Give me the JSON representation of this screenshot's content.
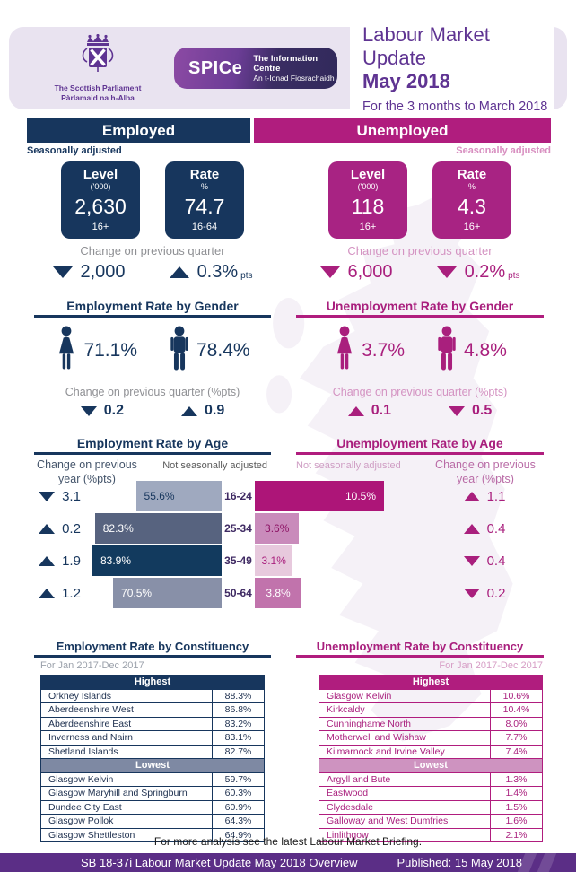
{
  "header": {
    "parliament_logo": {
      "line1": "The Scottish Parliament",
      "line2": "Pàrlamaid na h-Alba"
    },
    "spice": {
      "name": "SPICe",
      "line1": "The Information Centre",
      "line2": "An t-Ionad Fiosrachaidh"
    },
    "title_line1": "Labour Market Update",
    "title_line2": "May 2018",
    "subtitle": "For the 3 months to March 2018"
  },
  "employed": {
    "band_label": "Employed",
    "adjustment_note": "Seasonally adjusted",
    "level": {
      "label": "Level",
      "unit": "('000)",
      "value": "2,630",
      "age": "16+"
    },
    "rate": {
      "label": "Rate",
      "unit": "%",
      "value": "74.7",
      "age": "16-64"
    },
    "quarter_change_label": "Change on previous quarter",
    "quarter_changes": [
      {
        "direction": "down",
        "value": "2,000",
        "suffix": ""
      },
      {
        "direction": "up",
        "value": "0.3%",
        "suffix": "pts"
      }
    ],
    "gender": {
      "title": "Employment Rate by Gender",
      "female_rate": "71.1%",
      "male_rate": "78.4%",
      "change_label": "Change on previous quarter (%pts)",
      "changes": [
        {
          "direction": "down",
          "value": "0.2"
        },
        {
          "direction": "up",
          "value": "0.9"
        }
      ]
    },
    "constituency": {
      "title": "Employment Rate by Constituency",
      "period": "For Jan 2017-Dec 2017",
      "highest_label": "Highest",
      "lowest_label": "Lowest",
      "highest": [
        {
          "name": "Orkney Islands",
          "rate": "88.3%"
        },
        {
          "name": "Aberdeenshire West",
          "rate": "86.8%"
        },
        {
          "name": "Aberdeenshire East",
          "rate": "83.2%"
        },
        {
          "name": "Inverness and Nairn",
          "rate": "83.1%"
        },
        {
          "name": "Shetland Islands",
          "rate": "82.7%"
        }
      ],
      "lowest": [
        {
          "name": "Glasgow Kelvin",
          "rate": "59.7%"
        },
        {
          "name": "Glasgow Maryhill and Springburn",
          "rate": "60.3%"
        },
        {
          "name": "Dundee City East",
          "rate": "60.9%"
        },
        {
          "name": "Glasgow Pollok",
          "rate": "64.3%"
        },
        {
          "name": "Glasgow Shettleston",
          "rate": "64.9%"
        }
      ]
    }
  },
  "unemployed": {
    "band_label": "Unemployed",
    "adjustment_note": "Seasonally adjusted",
    "level": {
      "label": "Level",
      "unit": "('000)",
      "value": "118",
      "age": "16+"
    },
    "rate": {
      "label": "Rate",
      "unit": "%",
      "value": "4.3",
      "age": "16+"
    },
    "quarter_change_label": "Change on previous quarter",
    "quarter_changes": [
      {
        "direction": "down",
        "value": "6,000",
        "suffix": ""
      },
      {
        "direction": "down",
        "value": "0.2%",
        "suffix": "pts"
      }
    ],
    "gender": {
      "title": "Unemployment Rate by Gender",
      "female_rate": "3.7%",
      "male_rate": "4.8%",
      "change_label": "Change on previous quarter (%pts)",
      "changes": [
        {
          "direction": "up",
          "value": "0.1"
        },
        {
          "direction": "down",
          "value": "0.5"
        }
      ]
    },
    "constituency": {
      "title": "Unemployment Rate by Constituency",
      "period": "For Jan 2017-Dec 2017",
      "highest_label": "Highest",
      "lowest_label": "Lowest",
      "highest": [
        {
          "name": "Glasgow Kelvin",
          "rate": "10.6%"
        },
        {
          "name": "Kirkcaldy",
          "rate": "10.4%"
        },
        {
          "name": "Cunninghame North",
          "rate": "8.0%"
        },
        {
          "name": "Motherwell and Wishaw",
          "rate": "7.7%"
        },
        {
          "name": "Kilmarnock and Irvine Valley",
          "rate": "7.4%"
        }
      ],
      "lowest": [
        {
          "name": "Argyll and Bute",
          "rate": "1.3%"
        },
        {
          "name": "Eastwood",
          "rate": "1.4%"
        },
        {
          "name": "Clydesdale",
          "rate": "1.5%"
        },
        {
          "name": "Galloway and West Dumfries",
          "rate": "1.6%"
        },
        {
          "name": "Linlithgow",
          "rate": "2.1%"
        }
      ]
    }
  },
  "chart_data": [
    {
      "type": "bar",
      "title": "Employment Rate by Age",
      "orientation": "horizontal-right-aligned",
      "adjustment_note": "Not seasonally adjusted",
      "change_note_line1": "Change on previous",
      "change_note_line2": "year (%pts)",
      "categories": [
        "16-24",
        "25-34",
        "35-49",
        "50-64"
      ],
      "values": [
        55.6,
        82.3,
        83.9,
        70.5
      ],
      "value_labels": [
        "55.6%",
        "82.3%",
        "83.9%",
        "70.5%"
      ],
      "scale_max": 83.9,
      "bar_colors": [
        "#9fa9bf",
        "#57637f",
        "#123a5e",
        "#8890a8"
      ],
      "label_colors": [
        "#17365d",
        "#ffffff",
        "#ffffff",
        "#ffffff"
      ],
      "label_align": [
        "left",
        "left",
        "left",
        "left"
      ],
      "changes": [
        {
          "direction": "down",
          "value": "3.1"
        },
        {
          "direction": "up",
          "value": "0.2"
        },
        {
          "direction": "up",
          "value": "1.9"
        },
        {
          "direction": "up",
          "value": "1.2"
        }
      ]
    },
    {
      "type": "bar",
      "title": "Unemployment Rate by Age",
      "orientation": "horizontal-left-aligned",
      "adjustment_note": "Not seasonally adjusted",
      "change_note_line1": "Change on previous",
      "change_note_line2": "year (%pts)",
      "categories": [
        "16-24",
        "25-34",
        "35-49",
        "50-64"
      ],
      "values": [
        10.5,
        3.6,
        3.1,
        3.8
      ],
      "value_labels": [
        "10.5%",
        "3.6%",
        "3.1%",
        "3.8%"
      ],
      "scale_max": 10.5,
      "bar_colors": [
        "#ad1578",
        "#c98bbb",
        "#e7c9dd",
        "#c173ac"
      ],
      "label_colors": [
        "#ffffff",
        "#8e1566",
        "#a91f7d",
        "#ffffff"
      ],
      "label_align": [
        "right",
        "center",
        "center",
        "center"
      ],
      "changes": [
        {
          "direction": "up",
          "value": "1.1"
        },
        {
          "direction": "up",
          "value": "0.4"
        },
        {
          "direction": "down",
          "value": "0.4"
        },
        {
          "direction": "down",
          "value": "0.2"
        }
      ]
    }
  ],
  "footer": {
    "note": "For more analysis see the latest Labour Market Briefing.",
    "left": "SB 18-37i Labour Market Update May 2018 Overview",
    "right": "Published: 15 May 2018"
  },
  "colors": {
    "navy": "#17365d",
    "magenta": "#b01d7e",
    "magenta_text": "#a91f7d",
    "purple": "#5f3492",
    "footer_purple": "#5b2e86",
    "card_lavender": "#e9e3f0",
    "watermark": "#ede7f2"
  }
}
